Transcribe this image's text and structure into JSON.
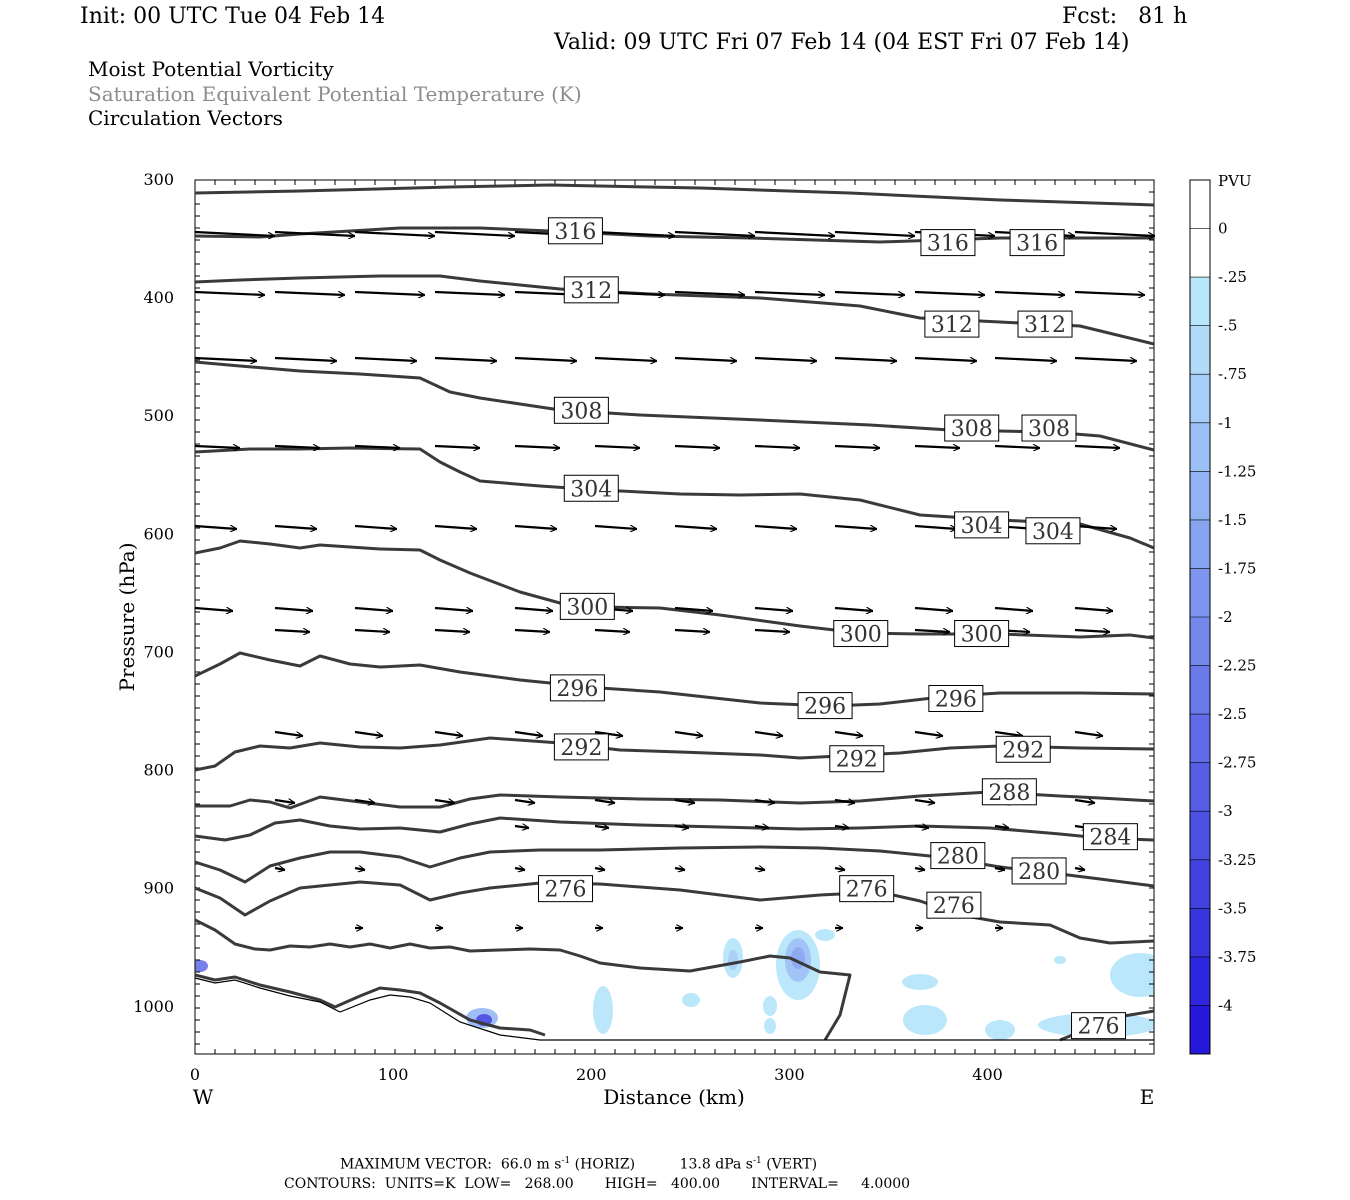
{
  "header": {
    "init": "Init: 00 UTC Tue 04 Feb 14",
    "fcst_label": "Fcst:",
    "fcst_value": "81 h",
    "valid": "Valid: 09 UTC Fri 07 Feb 14 (04 EST Fri 07 Feb 14)"
  },
  "titles": {
    "line1": "Moist Potential Vorticity",
    "line2": "Saturation Equivalent Potential Temperature (K)",
    "line3": "Circulation Vectors"
  },
  "footer": {
    "line1_prefix": "MAXIMUM VECTOR:",
    "horiz": "66.0 m s",
    "horiz_exp": "-1",
    "horiz_suffix": "(HORIZ)",
    "vert": "13.8 dPa s",
    "vert_exp": "-1",
    "vert_suffix": "(VERT)",
    "contours": "CONTOURS:  UNITS=K  LOW=   268.00       HIGH=   400.00       INTERVAL=     4.0000"
  },
  "colors": {
    "contour": "#3a3a3a",
    "vector": "#000000",
    "pv_scale": [
      "#ffffff",
      "#ffffff",
      "#b8e6fb",
      "#b0dcfa",
      "#a6cef8",
      "#9cc0f6",
      "#92b2f3",
      "#88a4f1",
      "#7e96ef",
      "#7488ec",
      "#6a7aea",
      "#606ce8",
      "#565ee5",
      "#4c50e3",
      "#4242e1",
      "#3834de",
      "#2e26dc",
      "#2418da"
    ]
  },
  "chart_data": {
    "type": "cross-section",
    "xlabel": "Distance (km)",
    "ylabel": "Pressure (hPa)",
    "xlim": [
      0,
      484
    ],
    "ylim": [
      1040,
      300
    ],
    "x_ticks": [
      0,
      100,
      200,
      300,
      400
    ],
    "y_ticks": [
      300,
      400,
      500,
      600,
      700,
      800,
      900,
      1000
    ],
    "x_end_labels": {
      "left": "W",
      "right": "E"
    },
    "colorbar": {
      "unit": "PVU",
      "labels": [
        "0",
        "-.25",
        "-.5",
        "-.75",
        "-1",
        "-1.25",
        "-1.5",
        "-1.75",
        "-2",
        "-2.25",
        "-2.5",
        "-2.75",
        "-3",
        "-3.25",
        "-3.5",
        "-3.75",
        "-4"
      ]
    },
    "contour_labels": [
      {
        "text": "316",
        "x": 192,
        "p": 343
      },
      {
        "text": "316",
        "x": 380,
        "p": 353
      },
      {
        "text": "316",
        "x": 425,
        "p": 353
      },
      {
        "text": "312",
        "x": 200,
        "p": 393
      },
      {
        "text": "312",
        "x": 382,
        "p": 422
      },
      {
        "text": "312",
        "x": 429,
        "p": 422
      },
      {
        "text": "308",
        "x": 195,
        "p": 495
      },
      {
        "text": "308",
        "x": 392,
        "p": 510
      },
      {
        "text": "308",
        "x": 431,
        "p": 510
      },
      {
        "text": "304",
        "x": 200,
        "p": 561
      },
      {
        "text": "304",
        "x": 397,
        "p": 592
      },
      {
        "text": "304",
        "x": 433,
        "p": 597
      },
      {
        "text": "300",
        "x": 198,
        "p": 661
      },
      {
        "text": "300",
        "x": 336,
        "p": 684
      },
      {
        "text": "300",
        "x": 397,
        "p": 684
      },
      {
        "text": "296",
        "x": 193,
        "p": 730
      },
      {
        "text": "296",
        "x": 318,
        "p": 745
      },
      {
        "text": "296",
        "x": 384,
        "p": 739
      },
      {
        "text": "292",
        "x": 195,
        "p": 780
      },
      {
        "text": "292",
        "x": 334,
        "p": 790
      },
      {
        "text": "292",
        "x": 418,
        "p": 782
      },
      {
        "text": "288",
        "x": 411,
        "p": 818
      },
      {
        "text": "284",
        "x": 462,
        "p": 856
      },
      {
        "text": "280",
        "x": 385,
        "p": 872
      },
      {
        "text": "280",
        "x": 426,
        "p": 885
      },
      {
        "text": "276",
        "x": 187,
        "p": 900
      },
      {
        "text": "276",
        "x": 339,
        "p": 900
      },
      {
        "text": "276",
        "x": 383,
        "p": 914
      },
      {
        "text": "276",
        "x": 456,
        "p": 1016
      }
    ]
  }
}
